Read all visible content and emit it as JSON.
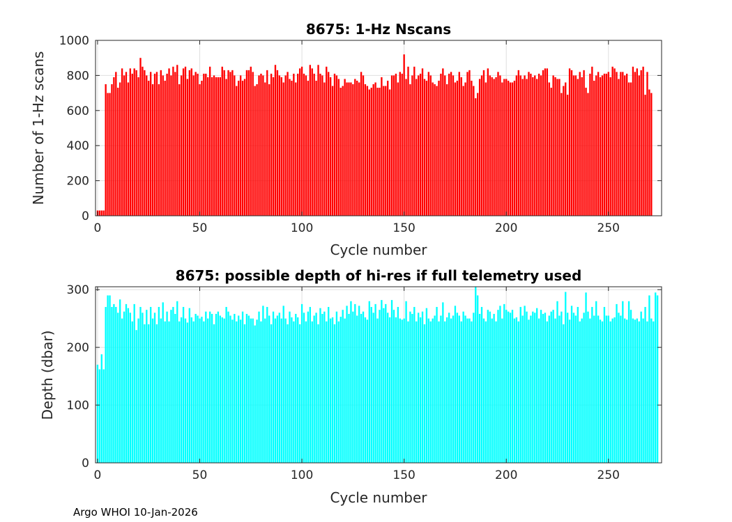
{
  "footer": "Argo WHOI 10-Jan-2026",
  "chart_data": [
    {
      "type": "bar",
      "title": "8675: 1-Hz Nscans",
      "xlabel": "Cycle number",
      "ylabel": "Number of 1-Hz scans",
      "xlim": [
        -1,
        276
      ],
      "ylim": [
        0,
        1000
      ],
      "xticks": [
        0,
        50,
        100,
        150,
        200,
        250
      ],
      "yticks": [
        0,
        200,
        400,
        600,
        800,
        1000
      ],
      "grid": true,
      "color": "#ff0000",
      "x_start": 0,
      "values": [
        30,
        30,
        30,
        30,
        750,
        700,
        700,
        750,
        790,
        820,
        730,
        760,
        840,
        800,
        820,
        760,
        840,
        810,
        840,
        830,
        790,
        900,
        850,
        830,
        800,
        770,
        820,
        750,
        810,
        820,
        750,
        830,
        800,
        770,
        810,
        840,
        800,
        850,
        820,
        860,
        750,
        800,
        840,
        850,
        780,
        830,
        840,
        800,
        820,
        810,
        750,
        770,
        810,
        810,
        790,
        850,
        790,
        800,
        790,
        790,
        790,
        850,
        830,
        780,
        830,
        820,
        830,
        800,
        740,
        770,
        800,
        770,
        780,
        830,
        830,
        850,
        820,
        740,
        750,
        800,
        810,
        800,
        760,
        830,
        750,
        810,
        790,
        860,
        830,
        800,
        790,
        760,
        800,
        820,
        780,
        770,
        810,
        760,
        810,
        840,
        850,
        810,
        800,
        770,
        860,
        840,
        810,
        770,
        860,
        810,
        800,
        760,
        850,
        820,
        790,
        740,
        810,
        800,
        780,
        730,
        740,
        780,
        760,
        760,
        760,
        750,
        780,
        770,
        760,
        820,
        800,
        750,
        740,
        720,
        730,
        750,
        760,
        730,
        730,
        790,
        740,
        740,
        770,
        720,
        800,
        800,
        810,
        760,
        820,
        810,
        920,
        780,
        850,
        750,
        800,
        850,
        780,
        800,
        810,
        840,
        780,
        770,
        820,
        800,
        760,
        750,
        740,
        770,
        810,
        840,
        800,
        750,
        810,
        820,
        800,
        760,
        770,
        820,
        790,
        740,
        760,
        820,
        830,
        770,
        740,
        670,
        700,
        780,
        800,
        830,
        760,
        840,
        800,
        790,
        780,
        790,
        820,
        800,
        760,
        780,
        780,
        770,
        760,
        760,
        770,
        800,
        830,
        800,
        780,
        800,
        780,
        820,
        810,
        790,
        800,
        780,
        810,
        800,
        830,
        840,
        840,
        760,
        730,
        800,
        790,
        780,
        780,
        700,
        740,
        760,
        690,
        840,
        830,
        800,
        800,
        780,
        820,
        790,
        830,
        730,
        700,
        810,
        850,
        770,
        800,
        820,
        790,
        800,
        810,
        810,
        820,
        790,
        850,
        840,
        820,
        780,
        820,
        820,
        800,
        810,
        760,
        760,
        850,
        820,
        840,
        800,
        830,
        850,
        690,
        820,
        720,
        700
      ]
    },
    {
      "type": "bar",
      "title": "8675: possible depth of hi-res if full telemetry used",
      "xlabel": "Cycle number",
      "ylabel": "Depth (dbar)",
      "xlim": [
        -1,
        276
      ],
      "ylim": [
        0,
        305
      ],
      "xticks": [
        0,
        50,
        100,
        150,
        200,
        250
      ],
      "yticks": [
        0,
        100,
        200,
        300
      ],
      "grid": true,
      "color": "#00ffff",
      "x_start": 0,
      "values": [
        170,
        162,
        188,
        162,
        270,
        290,
        290,
        270,
        275,
        270,
        260,
        283,
        250,
        262,
        275,
        268,
        260,
        245,
        275,
        230,
        250,
        270,
        260,
        240,
        265,
        240,
        270,
        250,
        260,
        240,
        270,
        250,
        278,
        245,
        262,
        245,
        265,
        270,
        258,
        280,
        245,
        252,
        270,
        250,
        243,
        268,
        252,
        245,
        258,
        255,
        250,
        253,
        245,
        262,
        250,
        262,
        258,
        240,
        258,
        262,
        255,
        252,
        250,
        270,
        262,
        255,
        248,
        258,
        245,
        255,
        248,
        262,
        240,
        258,
        255,
        250,
        250,
        238,
        248,
        262,
        245,
        272,
        250,
        270,
        255,
        240,
        262,
        250,
        255,
        260,
        250,
        272,
        250,
        240,
        262,
        252,
        245,
        258,
        252,
        240,
        275,
        260,
        245,
        262,
        270,
        245,
        255,
        260,
        240,
        268,
        258,
        262,
        245,
        270,
        250,
        252,
        240,
        262,
        245,
        253,
        265,
        250,
        272,
        258,
        280,
        262,
        275,
        255,
        272,
        258,
        262,
        252,
        248,
        280,
        270,
        260,
        275,
        250,
        265,
        282,
        268,
        275,
        260,
        252,
        282,
        265,
        252,
        270,
        250,
        248,
        250,
        280,
        245,
        262,
        258,
        270,
        245,
        260,
        252,
        262,
        240,
        268,
        250,
        245,
        250,
        255,
        270,
        245,
        255,
        278,
        245,
        252,
        260,
        250,
        255,
        272,
        260,
        255,
        245,
        262,
        255,
        250,
        250,
        245,
        260,
        305,
        290,
        258,
        270,
        250,
        245,
        265,
        262,
        250,
        258,
        245,
        265,
        272,
        250,
        275,
        265,
        262,
        260,
        265,
        250,
        252,
        245,
        270,
        255,
        272,
        262,
        248,
        255,
        262,
        260,
        268,
        250,
        265,
        258,
        260,
        245,
        255,
        262,
        265,
        250,
        280,
        255,
        262,
        240,
        296,
        260,
        248,
        272,
        260,
        255,
        270,
        245,
        250,
        260,
        295,
        262,
        250,
        270,
        255,
        280,
        255,
        248,
        245,
        270,
        255,
        255,
        245,
        250,
        252,
        275,
        260,
        255,
        280,
        250,
        248,
        280,
        265,
        250,
        248,
        250,
        245,
        262,
        250,
        270,
        245,
        290,
        250,
        245,
        295,
        290
      ]
    }
  ]
}
